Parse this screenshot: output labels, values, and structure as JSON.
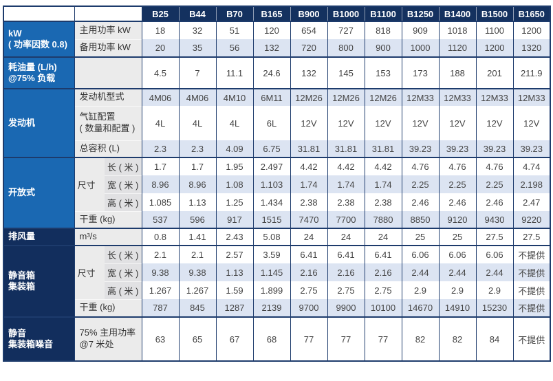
{
  "table": {
    "columns": [
      "B25",
      "B44",
      "B70",
      "B165",
      "B900",
      "B1000",
      "B1100",
      "B1250",
      "B1400",
      "B1500",
      "B1650"
    ],
    "sections": {
      "kw": {
        "line1": "kW",
        "line2": "( 功率因数 0.8)"
      },
      "fuel": {
        "line1": "耗油量 (L/h)",
        "line2": "@75% 负载"
      },
      "engine": {
        "label": "发动机"
      },
      "open": {
        "label": "开放式"
      },
      "airflow": {
        "label": "排风量"
      },
      "box": {
        "line1": "静音箱",
        "line2": "集装箱"
      },
      "noise": {
        "line1": "静音",
        "line2": "集装箱噪音"
      }
    },
    "labels": {
      "prime": "主用功率 kW",
      "standby": "备用功率 kW",
      "fuel_blank": "",
      "engine_model": "发动机型式",
      "cyl_line1": "气缸配置",
      "cyl_line2": "( 数量和配置 )",
      "displacement": "总容积 (L)",
      "dims": "尺寸",
      "length": "长 ( 米 )",
      "width": "宽 ( 米 )",
      "height": "高 ( 米 )",
      "dry_weight": "干重 (kg)",
      "airflow_unit": "m³/s",
      "noise_line1": "75% 主用功率",
      "noise_line2": "@7 米处"
    },
    "rows": {
      "prime_power": {
        "stripe": false,
        "values": [
          "18",
          "32",
          "51",
          "120",
          "654",
          "727",
          "818",
          "909",
          "1018",
          "1100",
          "1200"
        ]
      },
      "standby_power": {
        "stripe": true,
        "values": [
          "20",
          "35",
          "56",
          "132",
          "720",
          "800",
          "900",
          "1000",
          "1120",
          "1200",
          "1320"
        ]
      },
      "fuel": {
        "stripe": false,
        "values": [
          "4.5",
          "7",
          "11.1",
          "24.6",
          "132",
          "145",
          "153",
          "173",
          "188",
          "201",
          "211.9"
        ]
      },
      "engine_model": {
        "stripe": true,
        "values": [
          "4M06",
          "4M06",
          "4M10",
          "6M11",
          "12M26",
          "12M26",
          "12M26",
          "12M33",
          "12M33",
          "12M33",
          "12M33"
        ]
      },
      "cylinders": {
        "stripe": false,
        "values": [
          "4L",
          "4L",
          "4L",
          "6L",
          "12V",
          "12V",
          "12V",
          "12V",
          "12V",
          "12V",
          "12V"
        ]
      },
      "displacement": {
        "stripe": true,
        "values": [
          "2.3",
          "2.3",
          "4.09",
          "6.75",
          "31.81",
          "31.81",
          "31.81",
          "39.23",
          "39.23",
          "39.23",
          "39.23"
        ]
      },
      "open_length": {
        "stripe": false,
        "values": [
          "1.7",
          "1.7",
          "1.95",
          "2.497",
          "4.42",
          "4.42",
          "4.42",
          "4.76",
          "4.76",
          "4.76",
          "4.74"
        ]
      },
      "open_width": {
        "stripe": true,
        "values": [
          "8.96",
          "8.96",
          "1.08",
          "1.103",
          "1.74",
          "1.74",
          "1.74",
          "2.25",
          "2.25",
          "2.25",
          "2.198"
        ]
      },
      "open_height": {
        "stripe": false,
        "values": [
          "1.085",
          "1.13",
          "1.25",
          "1.434",
          "2.38",
          "2.38",
          "2.38",
          "2.46",
          "2.46",
          "2.46",
          "2.47"
        ]
      },
      "open_weight": {
        "stripe": true,
        "values": [
          "537",
          "596",
          "917",
          "1515",
          "7470",
          "7700",
          "7880",
          "8850",
          "9120",
          "9430",
          "9220"
        ]
      },
      "airflow": {
        "stripe": false,
        "values": [
          "0.8",
          "1.41",
          "2.43",
          "5.08",
          "24",
          "24",
          "24",
          "25",
          "25",
          "27.5",
          "27.5"
        ]
      },
      "box_length": {
        "stripe": false,
        "values": [
          "2.1",
          "2.1",
          "2.57",
          "3.59",
          "6.41",
          "6.41",
          "6.41",
          "6.06",
          "6.06",
          "6.06",
          "不提供"
        ]
      },
      "box_width": {
        "stripe": true,
        "values": [
          "9.38",
          "9.38",
          "1.13",
          "1.145",
          "2.16",
          "2.16",
          "2.16",
          "2.44",
          "2.44",
          "2.44",
          "不提供"
        ]
      },
      "box_height": {
        "stripe": false,
        "values": [
          "1.267",
          "1.267",
          "1.59",
          "1.899",
          "2.75",
          "2.75",
          "2.75",
          "2.9",
          "2.9",
          "2.9",
          "不提供"
        ]
      },
      "box_weight": {
        "stripe": true,
        "values": [
          "787",
          "845",
          "1287",
          "2139",
          "9700",
          "9900",
          "10100",
          "14670",
          "14910",
          "15230",
          "不提供"
        ]
      },
      "noise": {
        "stripe": false,
        "values": [
          "63",
          "65",
          "67",
          "68",
          "77",
          "77",
          "77",
          "82",
          "82",
          "84",
          "不提供"
        ]
      }
    },
    "colors": {
      "header_bg": "#14315f",
      "section_blue": "#1a68b2",
      "section_navy": "#122e5d",
      "stripe": "#dce4f2",
      "label_bg": "#ebebeb",
      "dim_label_bg": "#e1e1e3",
      "border": "#1d3b6c"
    }
  }
}
